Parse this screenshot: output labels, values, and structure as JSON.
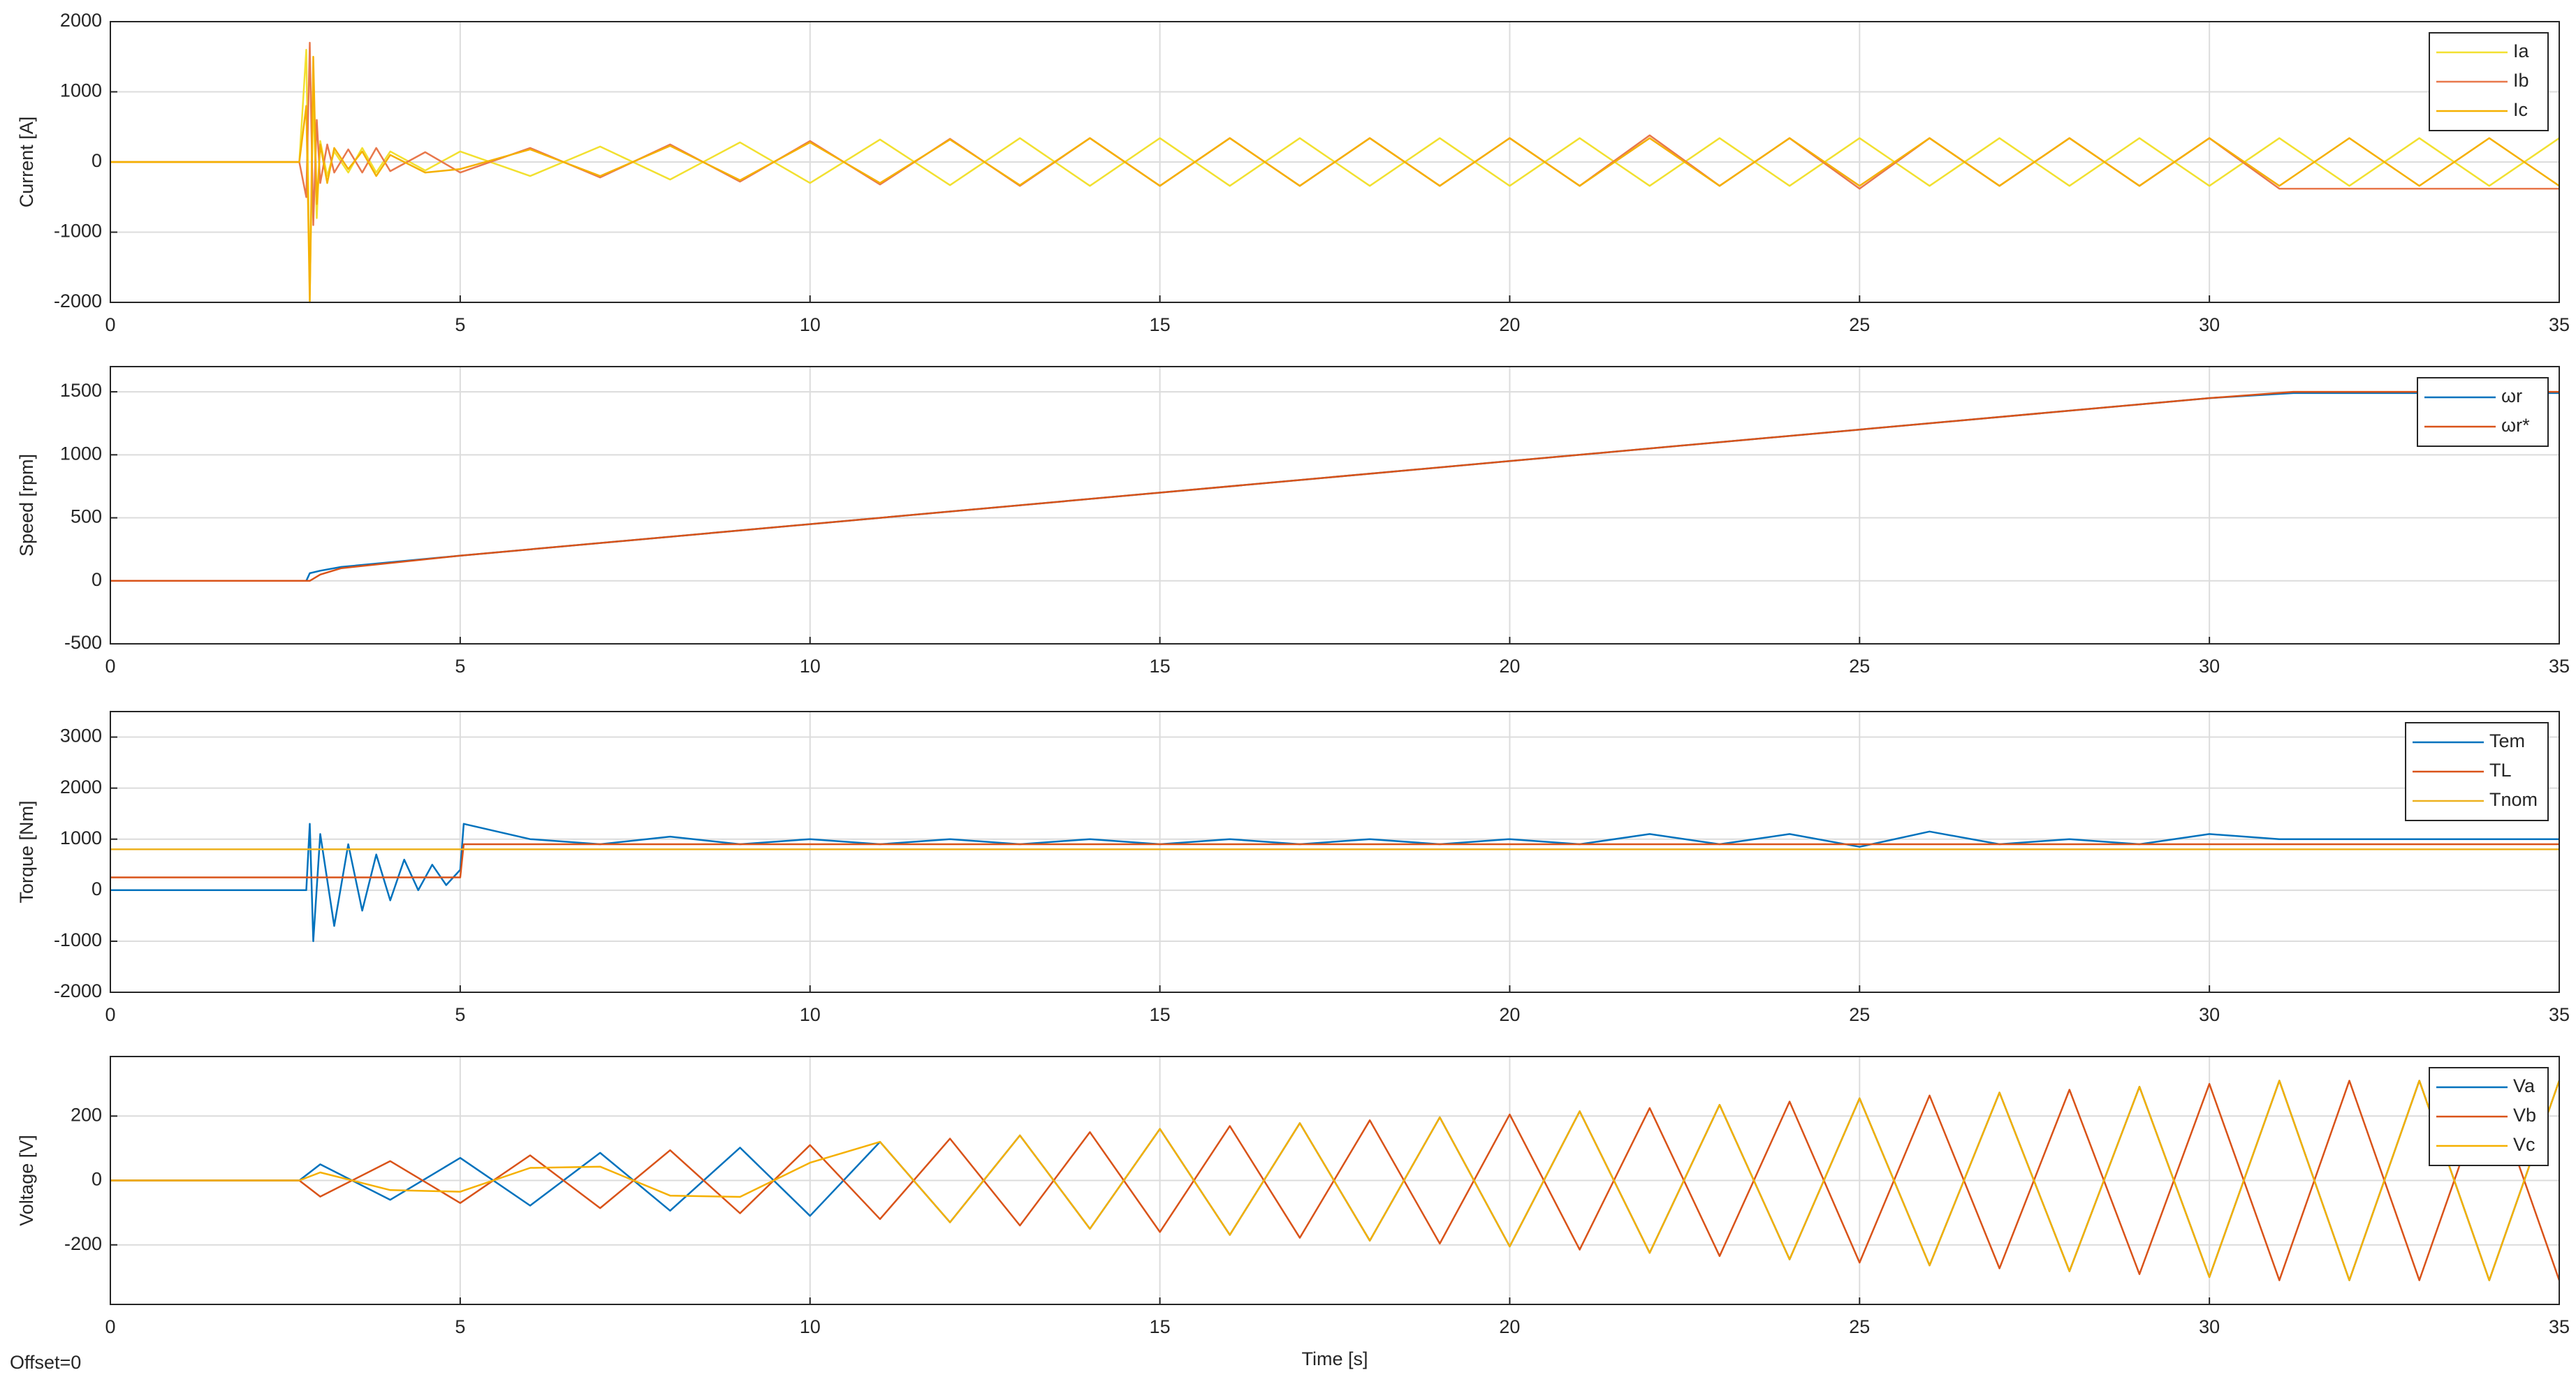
{
  "chart_data": [
    {
      "type": "line",
      "ylabel": "Current [A]",
      "x": [
        0,
        2.7,
        2.8,
        2.85,
        2.9,
        2.95,
        3.0,
        3.1,
        3.2,
        3.4,
        3.6,
        3.8,
        4,
        4.5,
        5,
        6,
        7,
        8,
        9,
        10,
        11,
        12,
        13,
        14,
        15,
        16,
        17,
        18,
        19,
        20,
        21,
        22,
        23,
        24,
        25,
        26,
        27,
        28,
        29,
        30,
        31,
        32,
        33,
        34,
        35
      ],
      "series": [
        {
          "name": "Ia",
          "color": "#f2e030",
          "values": [
            0,
            0,
            1600,
            -1900,
            1000,
            -800,
            300,
            -200,
            150,
            -150,
            200,
            -150,
            150,
            -120,
            150,
            -200,
            220,
            -250,
            280,
            -300,
            320,
            -330,
            340,
            -340,
            340,
            -340,
            340,
            -340,
            340,
            -340,
            340,
            -340,
            340,
            -340,
            340,
            -340,
            340,
            -340,
            340,
            -340,
            340,
            -340,
            340,
            -340,
            340
          ]
        },
        {
          "name": "Ib",
          "color": "#e8784c",
          "values": [
            0,
            0,
            -500,
            1700,
            -900,
            600,
            -300,
            250,
            -150,
            180,
            -150,
            200,
            -130,
            140,
            -150,
            200,
            -220,
            250,
            -280,
            300,
            -320,
            330,
            -340,
            340,
            -340,
            340,
            -340,
            340,
            -340,
            340,
            -340,
            380,
            -340,
            340,
            -380,
            340,
            -340,
            340,
            -340,
            340,
            -380,
            -380,
            -380,
            -380,
            -380
          ]
        },
        {
          "name": "Ic",
          "color": "#f5b000",
          "values": [
            0,
            0,
            800,
            -2000,
            1500,
            -600,
            250,
            -300,
            200,
            -100,
            150,
            -200,
            100,
            -150,
            -100,
            180,
            -200,
            230,
            -260,
            280,
            -300,
            320,
            -330,
            340,
            -340,
            340,
            -340,
            340,
            -340,
            340,
            -340,
            340,
            -340,
            340,
            -340,
            340,
            -340,
            340,
            -340,
            340,
            -340,
            340,
            -340,
            340,
            -340
          ]
        }
      ],
      "xlim": [
        0,
        35
      ],
      "xticks": [
        0,
        5,
        10,
        15,
        20,
        25,
        30,
        35
      ],
      "ylim": [
        -2000,
        2000
      ],
      "yticks": [
        -2000,
        -1000,
        0,
        1000,
        2000
      ],
      "grid": true,
      "legend": "upper right"
    },
    {
      "type": "line",
      "ylabel": "Speed [rpm]",
      "x": [
        0,
        2.8,
        2.85,
        3.0,
        3.3,
        5,
        10,
        15,
        20,
        25,
        30,
        31.2,
        35
      ],
      "series": [
        {
          "name": "ωr",
          "color": "#0072bd",
          "values": [
            0,
            0,
            60,
            80,
            110,
            200,
            450,
            700,
            950,
            1200,
            1450,
            1490,
            1490
          ]
        },
        {
          "name": "ωr*",
          "color": "#d95319",
          "values": [
            0,
            0,
            0,
            50,
            100,
            200,
            450,
            700,
            950,
            1200,
            1450,
            1500,
            1500
          ]
        }
      ],
      "xlim": [
        0,
        35
      ],
      "xticks": [
        0,
        5,
        10,
        15,
        20,
        25,
        30,
        35
      ],
      "ylim": [
        -500,
        1700
      ],
      "yticks": [
        -500,
        0,
        500,
        1000,
        1500
      ],
      "grid": true,
      "legend": "upper right"
    },
    {
      "type": "line",
      "ylabel": "Torque [Nm]",
      "x": [
        0,
        2.8,
        2.85,
        2.9,
        3.0,
        3.2,
        3.4,
        3.6,
        3.8,
        4.0,
        4.2,
        4.4,
        4.6,
        4.8,
        5.0,
        5.05,
        6,
        7,
        8,
        9,
        10,
        11,
        12,
        13,
        14,
        15,
        16,
        17,
        18,
        19,
        20,
        21,
        22,
        23,
        24,
        25,
        26,
        27,
        28,
        29,
        30,
        31,
        32,
        33,
        34,
        35
      ],
      "series": [
        {
          "name": "Tem",
          "color": "#0072bd",
          "values": [
            0,
            0,
            1300,
            -1000,
            1100,
            -700,
            900,
            -400,
            700,
            -200,
            600,
            0,
            500,
            100,
            400,
            1300,
            1000,
            900,
            1050,
            900,
            1000,
            900,
            1000,
            900,
            1000,
            900,
            1000,
            900,
            1000,
            900,
            1000,
            900,
            1100,
            900,
            1100,
            850,
            1150,
            900,
            1000,
            900,
            1100,
            1000,
            1000,
            1000,
            1000,
            1000
          ]
        },
        {
          "name": "TL",
          "color": "#d95319",
          "values": [
            250,
            250,
            250,
            250,
            250,
            250,
            250,
            250,
            250,
            250,
            250,
            250,
            250,
            250,
            250,
            900,
            900,
            900,
            900,
            900,
            900,
            900,
            900,
            900,
            900,
            900,
            900,
            900,
            900,
            900,
            900,
            900,
            900,
            900,
            900,
            900,
            900,
            900,
            900,
            900,
            900,
            900,
            900,
            900,
            900,
            900
          ]
        },
        {
          "name": "Tnom",
          "color": "#edb120",
          "values": [
            800,
            800,
            800,
            800,
            800,
            800,
            800,
            800,
            800,
            800,
            800,
            800,
            800,
            800,
            800,
            800,
            800,
            800,
            800,
            800,
            800,
            800,
            800,
            800,
            800,
            800,
            800,
            800,
            800,
            800,
            800,
            800,
            800,
            800,
            800,
            800,
            800,
            800,
            800,
            800,
            800,
            800,
            800,
            800,
            800,
            800
          ]
        }
      ],
      "xlim": [
        0,
        35
      ],
      "xticks": [
        0,
        5,
        10,
        15,
        20,
        25,
        30,
        35
      ],
      "ylim": [
        -2000,
        3500
      ],
      "yticks": [
        -2000,
        -1000,
        0,
        1000,
        2000,
        3000
      ],
      "grid": true,
      "legend": "upper right"
    },
    {
      "type": "line",
      "ylabel": "Voltage [V]",
      "xlabel": "Time [s]",
      "annotation": "Offset=0",
      "x": [
        0,
        2.7,
        3,
        4,
        5,
        6,
        7,
        8,
        9,
        10,
        11,
        12,
        13,
        14,
        15,
        16,
        17,
        18,
        19,
        20,
        21,
        22,
        23,
        24,
        25,
        26,
        27,
        28,
        29,
        30,
        31,
        32,
        33,
        34,
        35
      ],
      "series": [
        {
          "name": "Va",
          "color": "#0072bd",
          "values": [
            0,
            0,
            50,
            -60,
            70,
            -78,
            86,
            -94,
            102,
            -110,
            120,
            -130,
            140,
            -150,
            160,
            -169,
            178,
            -187,
            196,
            -205,
            215,
            -225,
            235,
            -245,
            255,
            -264,
            273,
            -282,
            291,
            -300,
            310,
            -310,
            310,
            -310,
            310
          ]
        },
        {
          "name": "Vb",
          "color": "#d95319",
          "values": [
            0,
            0,
            -50,
            60,
            -70,
            78,
            -86,
            94,
            -102,
            110,
            -120,
            130,
            -140,
            150,
            -160,
            169,
            -178,
            187,
            -196,
            205,
            -215,
            225,
            -235,
            245,
            -255,
            264,
            -273,
            282,
            -291,
            300,
            -310,
            310,
            -310,
            310,
            -310
          ]
        },
        {
          "name": "Vc",
          "color": "#f5b000",
          "values": [
            0,
            0,
            25,
            -30,
            -35,
            39,
            43,
            -47,
            -51,
            55,
            120,
            -130,
            140,
            -150,
            160,
            -169,
            178,
            -187,
            196,
            -205,
            215,
            -225,
            235,
            -245,
            255,
            -264,
            273,
            -282,
            291,
            -300,
            310,
            -310,
            310,
            -310,
            310
          ]
        }
      ],
      "xlim": [
        0,
        35
      ],
      "xticks": [
        0,
        5,
        10,
        15,
        20,
        25,
        30,
        35
      ],
      "ylim": [
        -385,
        385
      ],
      "yticks": [
        -200,
        0,
        200
      ],
      "grid": true,
      "legend": "upper right"
    }
  ]
}
